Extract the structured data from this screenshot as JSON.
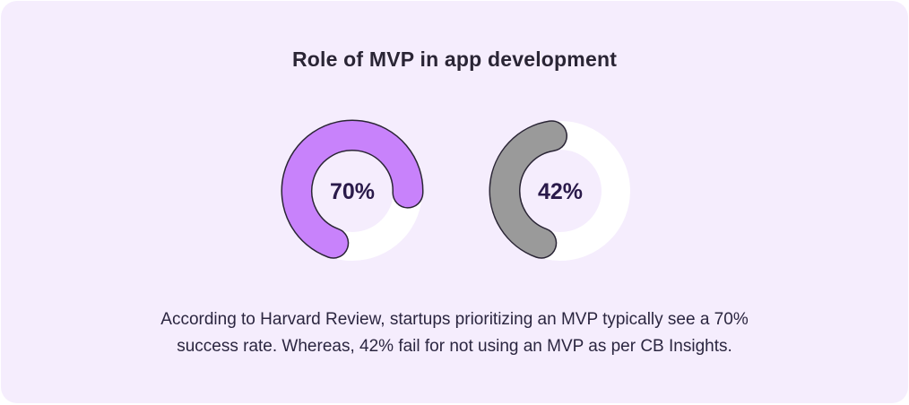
{
  "title": "Role of MVP in app development",
  "chart_data": {
    "type": "donut",
    "title": "Role of MVP in app development",
    "series": [
      {
        "value": 70,
        "label": "70%",
        "color": "#c882fb"
      },
      {
        "value": 42,
        "label": "42%",
        "color": "#9a9a9a"
      }
    ],
    "track_color": "#ffffff",
    "outline_color": "#2a2535",
    "label_color": "#2a1a4a"
  },
  "caption": {
    "line1": "According to Harvard Review, startups prioritizing an MVP typically see a 70%",
    "line2": "success rate. Whereas, 42% fail for not using an MVP as per CB Insights."
  }
}
